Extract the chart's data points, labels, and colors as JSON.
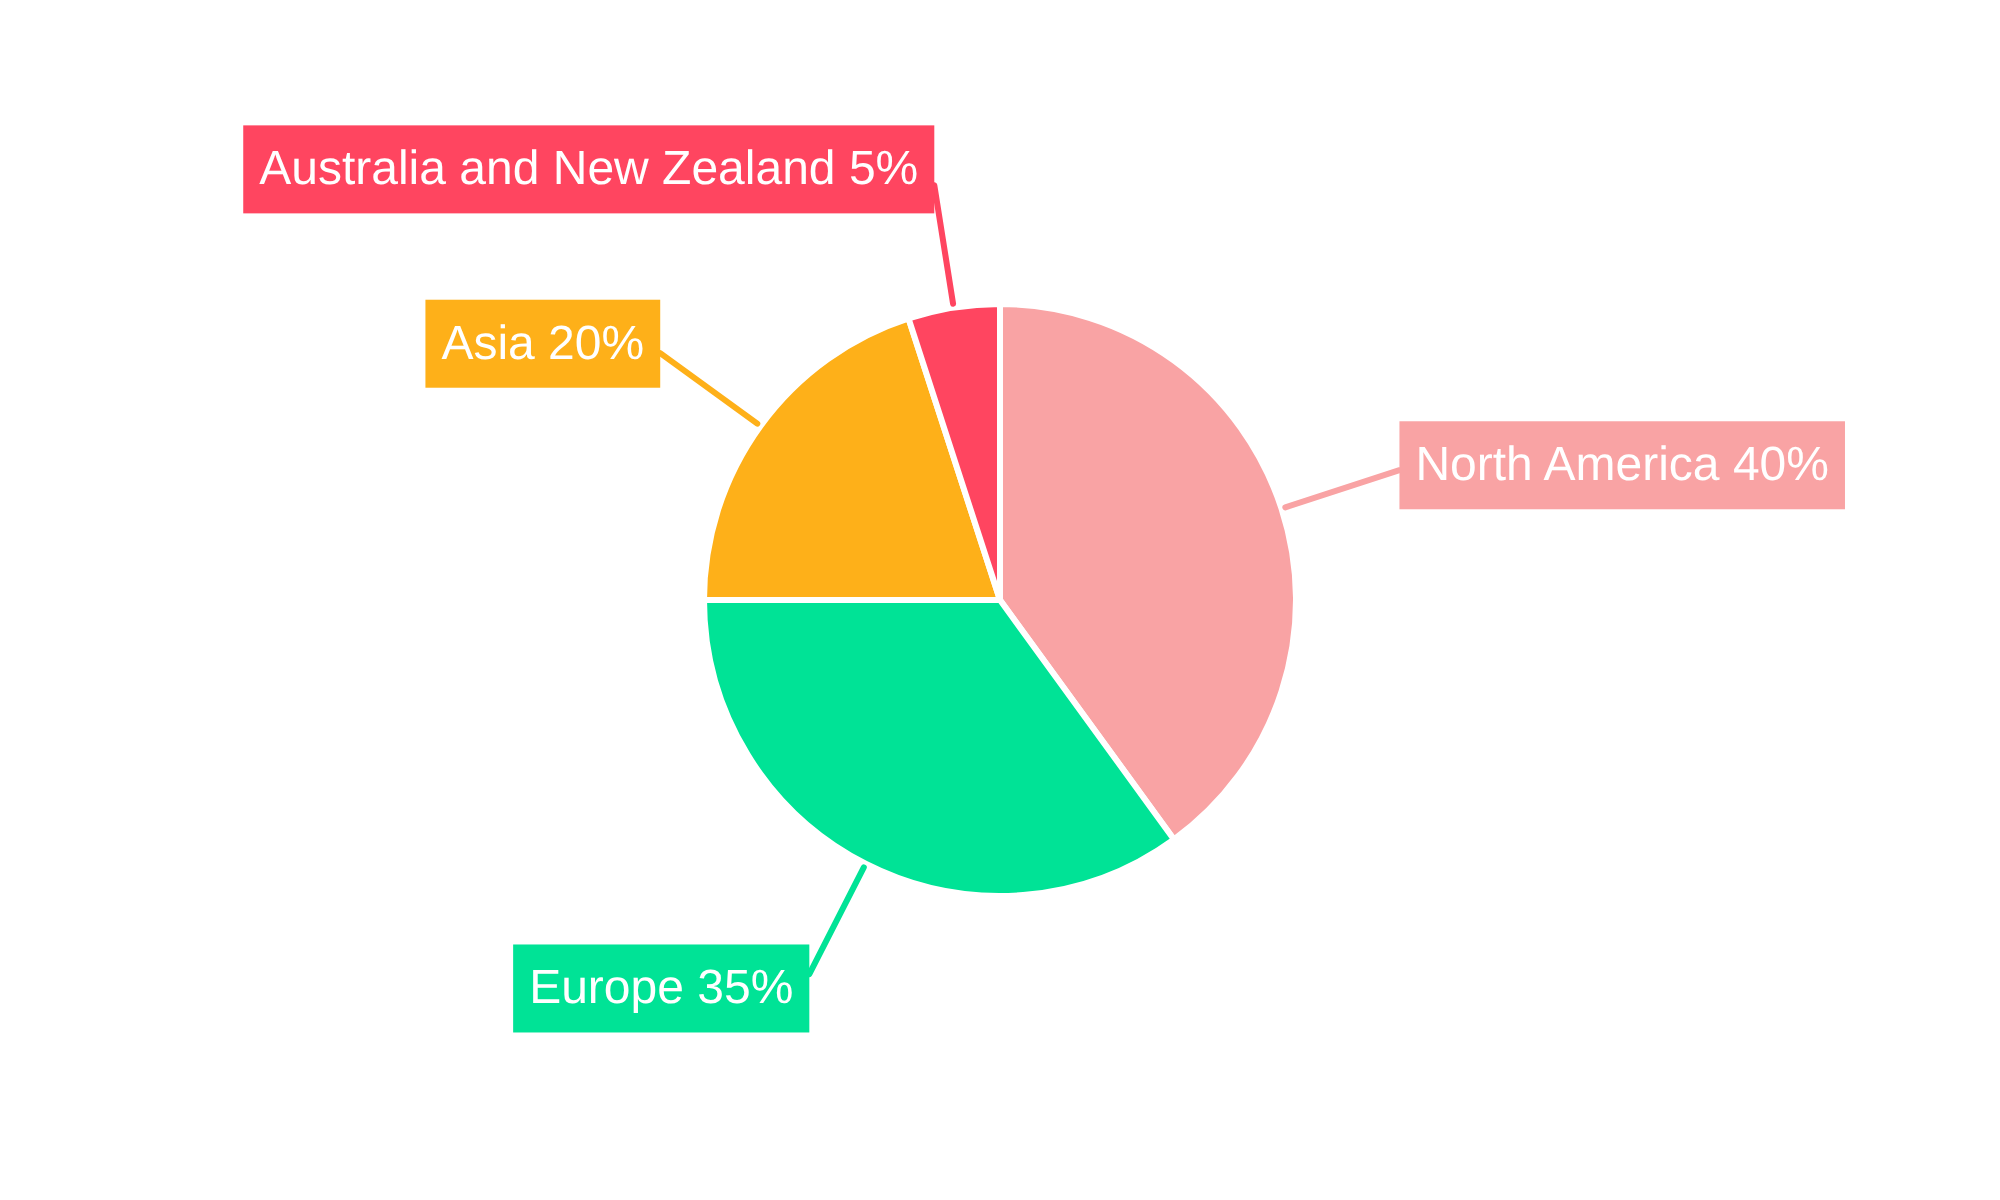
{
  "chart_data": {
    "type": "pie",
    "categories": [
      "North America",
      "Europe",
      "Asia",
      "Australia and New Zealand"
    ],
    "values": [
      40,
      35,
      20,
      5
    ],
    "colors": [
      "#f9a3a4",
      "#00e396",
      "#feb019",
      "#ff4560"
    ],
    "value_labels": [
      "40%",
      "35%",
      "20%",
      "5%"
    ]
  }
}
